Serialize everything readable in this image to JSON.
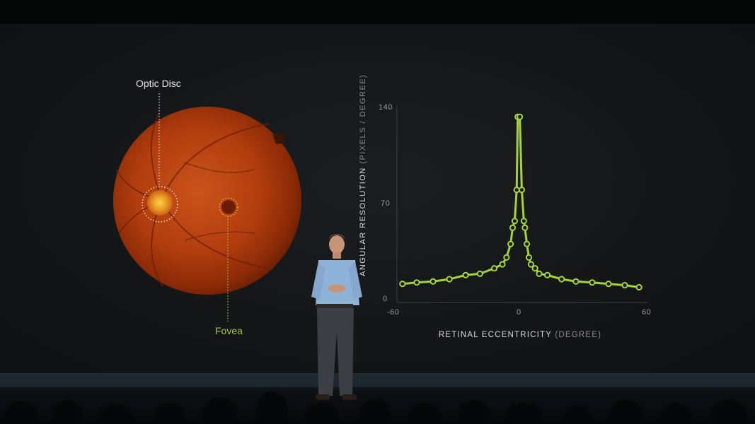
{
  "retina": {
    "optic_disc_label": "Optic Disc",
    "fovea_label": "Fovea"
  },
  "chart_data": {
    "type": "line",
    "title": "",
    "ylabel_main": "ANGULAR RESOLUTION",
    "ylabel_unit": "(PIXELS / DEGREE)",
    "xlabel_main": "RETINAL ECCENTRICITY",
    "xlabel_unit": "(DEGREE)",
    "xlim": [
      -60,
      60
    ],
    "ylim": [
      0,
      140
    ],
    "x_ticks": [
      "-60",
      "0",
      "60"
    ],
    "y_ticks": [
      "140",
      "70",
      "0"
    ],
    "grid": false,
    "color": "#a6d33a",
    "series": [
      {
        "x": [
          -58,
          -51,
          -43,
          -35,
          -27,
          -20,
          -13,
          -9,
          -7,
          -5,
          -4,
          -3,
          -2,
          -1.5,
          -0.5,
          0.5,
          1.5,
          2,
          3,
          4,
          5,
          7,
          9,
          13,
          20,
          27,
          35,
          43,
          51,
          58
        ],
        "y": [
          8.5,
          9.5,
          10.3,
          12,
          15,
          16,
          20,
          23,
          28,
          38,
          50,
          55,
          78,
          132,
          132,
          78,
          55,
          50,
          38,
          28,
          23,
          20,
          16,
          15,
          12,
          10.3,
          9.5,
          8.5,
          7.5,
          6
        ]
      }
    ]
  }
}
